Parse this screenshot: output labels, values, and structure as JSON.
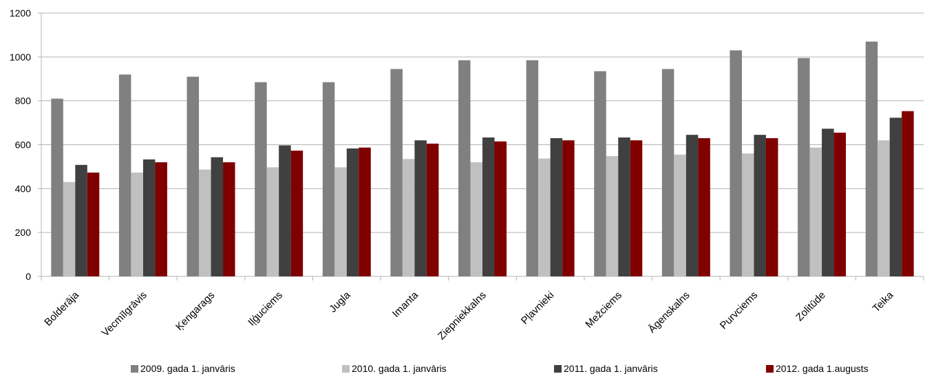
{
  "chart_data": {
    "type": "bar",
    "title": "",
    "xlabel": "",
    "ylabel": "",
    "ylim": [
      0,
      1200
    ],
    "yticks": [
      0,
      200,
      400,
      600,
      800,
      1000,
      1200
    ],
    "grid": "horizontal",
    "legend_position": "bottom",
    "categories": [
      "Bolderāja",
      "Vecmīlgrāvis",
      "Ķengarags",
      "Iļģuciems",
      "Jugla",
      "Imanta",
      "Ziepniekkalns",
      "Pļavnieki",
      "Mežciems",
      "Āgenskalns",
      "Purvciems",
      "Zolitūde",
      "Teika"
    ],
    "series": [
      {
        "name": "2009. gada 1. janvāris",
        "color": "#808080",
        "values": [
          810,
          920,
          910,
          885,
          885,
          945,
          985,
          985,
          935,
          945,
          1030,
          995,
          1070
        ]
      },
      {
        "name": "2010. gada 1. janvāris",
        "color": "#c0c0c0",
        "values": [
          430,
          473,
          487,
          497,
          497,
          535,
          520,
          537,
          548,
          555,
          560,
          587,
          620
        ]
      },
      {
        "name": "2011. gada 1. janvāris",
        "color": "#404040",
        "values": [
          508,
          533,
          543,
          597,
          583,
          620,
          633,
          630,
          633,
          645,
          645,
          673,
          723
        ]
      },
      {
        "name": "2012. gada 1.augusts",
        "color": "#800000",
        "values": [
          473,
          520,
          520,
          573,
          587,
          605,
          615,
          620,
          620,
          630,
          630,
          655,
          753
        ]
      }
    ]
  }
}
